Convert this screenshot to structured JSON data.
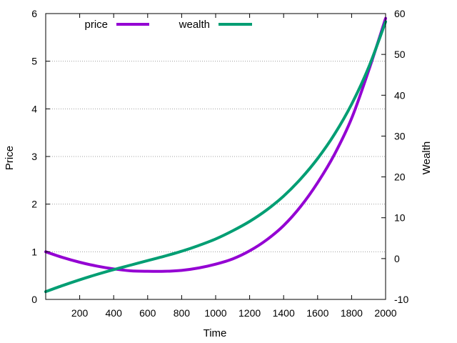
{
  "chart_data": {
    "type": "line",
    "title": "",
    "xlabel": "Time",
    "ylabel": "Price",
    "y2label": "Wealth",
    "xlim": [
      0,
      2000
    ],
    "ylim": [
      0,
      6
    ],
    "y2lim": [
      -10,
      60
    ],
    "x_ticks": [
      200,
      400,
      600,
      800,
      1000,
      1200,
      1400,
      1600,
      1800,
      2000
    ],
    "x_tick_labels": [
      "200",
      "400",
      "600",
      "800",
      "1000",
      "1200",
      "1400",
      "1600",
      "1800",
      "2000"
    ],
    "y_ticks": [
      0,
      1,
      2,
      3,
      4,
      5,
      6
    ],
    "y_tick_labels": [
      "0",
      "1",
      "2",
      "3",
      "4",
      "5",
      "6"
    ],
    "y2_ticks": [
      -10,
      0,
      10,
      20,
      30,
      40,
      50,
      60
    ],
    "y2_tick_labels": [
      "-10",
      "0",
      "10",
      "20",
      "30",
      "40",
      "50",
      "60"
    ],
    "grid": "horizontal dotted at y ticks",
    "legend_position": "top-left",
    "series": [
      {
        "name": "price",
        "axis": "left",
        "color": "#9400d3",
        "x": [
          0,
          100,
          200,
          300,
          400,
          500,
          600,
          700,
          800,
          900,
          1000,
          1100,
          1200,
          1300,
          1400,
          1500,
          1600,
          1700,
          1800,
          1900,
          2000
        ],
        "values": [
          1.0,
          0.88,
          0.78,
          0.7,
          0.64,
          0.6,
          0.59,
          0.59,
          0.61,
          0.66,
          0.74,
          0.85,
          1.02,
          1.25,
          1.55,
          1.95,
          2.45,
          3.05,
          3.8,
          4.8,
          5.9
        ]
      },
      {
        "name": "wealth",
        "axis": "right",
        "color": "#009e73",
        "x": [
          0,
          100,
          200,
          300,
          400,
          500,
          600,
          700,
          800,
          900,
          1000,
          1100,
          1200,
          1300,
          1400,
          1500,
          1600,
          1700,
          1800,
          1900,
          2000
        ],
        "values": [
          -8.1,
          -6.6,
          -5.2,
          -3.9,
          -2.7,
          -1.6,
          -0.5,
          0.6,
          1.8,
          3.2,
          4.8,
          6.8,
          9.1,
          11.9,
          15.3,
          19.5,
          24.5,
          30.5,
          37.8,
          46.8,
          58.0
        ]
      }
    ]
  }
}
